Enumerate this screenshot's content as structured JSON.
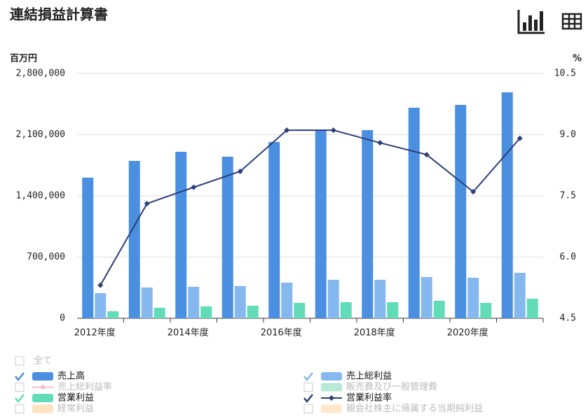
{
  "chart_data": {
    "type": "bar-line",
    "title": "連結損益計算書",
    "y_label": "百万円",
    "y2_label": "%",
    "categories": [
      "2012年度",
      null,
      "2014年度",
      null,
      "2016年度",
      null,
      "2018年度",
      null,
      "2020年度",
      null
    ],
    "ylim": [
      0,
      2800000
    ],
    "yticks": [
      0,
      {
        "value": 700000,
        "label": "700,000"
      },
      {
        "value": 1400000,
        "label": "1,400,000"
      },
      {
        "value": 2100000,
        "label": "2,100,000"
      },
      {
        "value": 2800000,
        "label": "2,800,000"
      }
    ],
    "y2lim": [
      4.5,
      10.5
    ],
    "y2ticks": [
      4.5,
      {
        "value": 6,
        "label": "6.0"
      },
      7.5,
      {
        "value": 9,
        "label": "9.0"
      },
      10.5
    ],
    "grid": true,
    "legend_all_label": "全て",
    "series": [
      {
        "name": "売上高",
        "color": "#4a8fe0",
        "kind": "bar",
        "visible": true,
        "values": [
          1608000,
          1800000,
          1904000,
          1848000,
          2016000,
          2152000,
          2152000,
          2408000,
          2440000,
          2584000
        ]
      },
      {
        "name": "売上総利益",
        "color": "#86b8f0",
        "kind": "bar",
        "visible": true,
        "values": [
          288000,
          352000,
          360000,
          368000,
          408000,
          440000,
          440000,
          472000,
          464000,
          520000
        ]
      },
      {
        "name": "売上総利益率",
        "color": "#f6c0c8",
        "kind": "line",
        "visible": false
      },
      {
        "name": "販売費及び一般管理費",
        "color": "#b8e8d6",
        "kind": "bar",
        "visible": false
      },
      {
        "name": "営業利益",
        "color": "#62dcb8",
        "kind": "bar",
        "visible": true,
        "values": [
          80000,
          120000,
          136000,
          144000,
          176000,
          184000,
          184000,
          200000,
          176000,
          224000
        ]
      },
      {
        "name": "営業利益率",
        "color": "#2b3f7a",
        "kind": "line",
        "axis": "y2",
        "visible": true,
        "values": [
          5.31,
          7.31,
          7.71,
          8.1,
          9.11,
          9.11,
          8.8,
          8.51,
          7.6,
          8.91
        ]
      },
      {
        "name": "経常利益",
        "color": "#fde3c0",
        "kind": "bar",
        "visible": false
      },
      {
        "name": "親会社株主に帰属する当期純利益",
        "color": "#fde8cc",
        "kind": "bar",
        "visible": false
      }
    ]
  }
}
